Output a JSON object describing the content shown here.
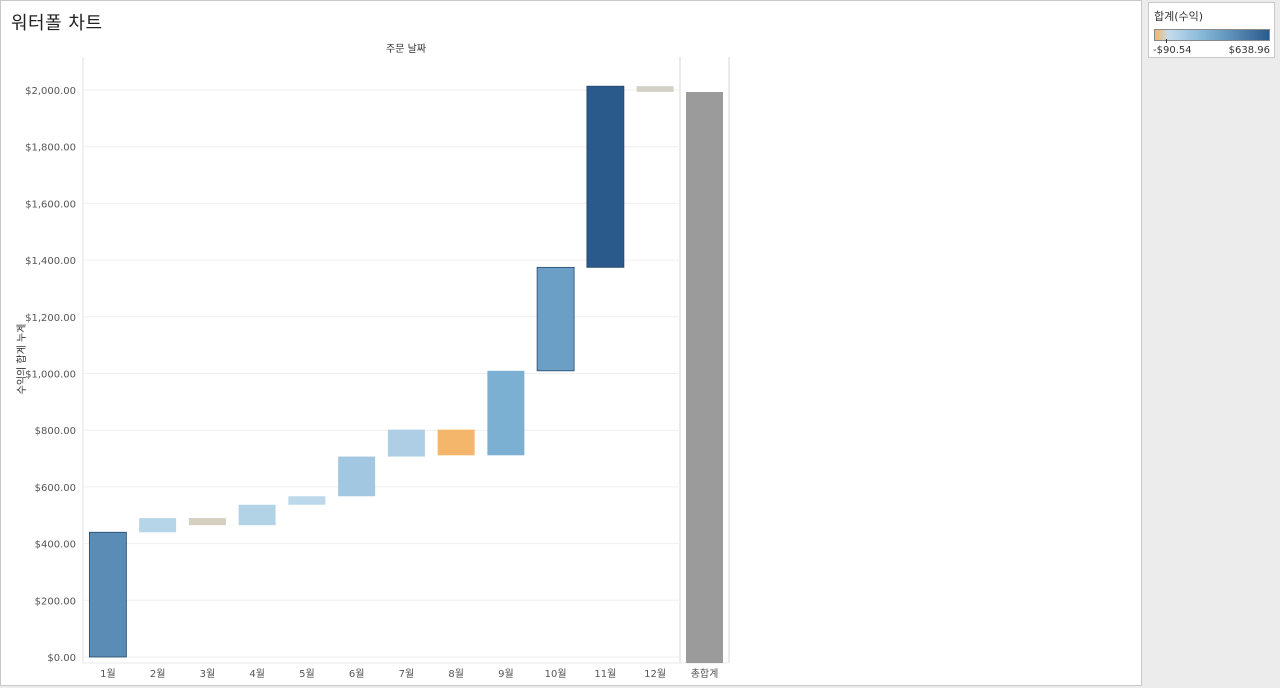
{
  "title": "워터폴 차트",
  "legend": {
    "title": "합계(수익)",
    "min_label": "-$90.54",
    "max_label": "$638.96",
    "min_value": -90.54,
    "max_value": 638.96,
    "colors": {
      "negative": "#f3b66b",
      "zero": "#c3dcec",
      "positive_mid": "#7fb3d5",
      "positive_max": "#2a5a8c"
    }
  },
  "chart_data": {
    "type": "bar",
    "subtype": "waterfall",
    "header": "주문 날짜",
    "ylabel": "수익의 합계 누계",
    "ylim": [
      0,
      2100
    ],
    "yticks": [
      0,
      200,
      400,
      600,
      800,
      1000,
      1200,
      1400,
      1600,
      1800,
      2000
    ],
    "ytick_labels": [
      "$0.00",
      "$200.00",
      "$400.00",
      "$600.00",
      "$800.00",
      "$1,000.00",
      "$1,200.00",
      "$1,400.00",
      "$1,600.00",
      "$1,800.00",
      "$2,000.00"
    ],
    "categories": [
      "1월",
      "2월",
      "3월",
      "4월",
      "5월",
      "6월",
      "7월",
      "8월",
      "9월",
      "10월",
      "11월",
      "12월"
    ],
    "values": [
      440,
      50,
      -25,
      72,
      30,
      140,
      95,
      -90.54,
      298,
      365,
      638.96,
      -20
    ],
    "total": {
      "label": "총합계",
      "value": 1993,
      "color": "#9b9b9b"
    },
    "grid": true
  }
}
